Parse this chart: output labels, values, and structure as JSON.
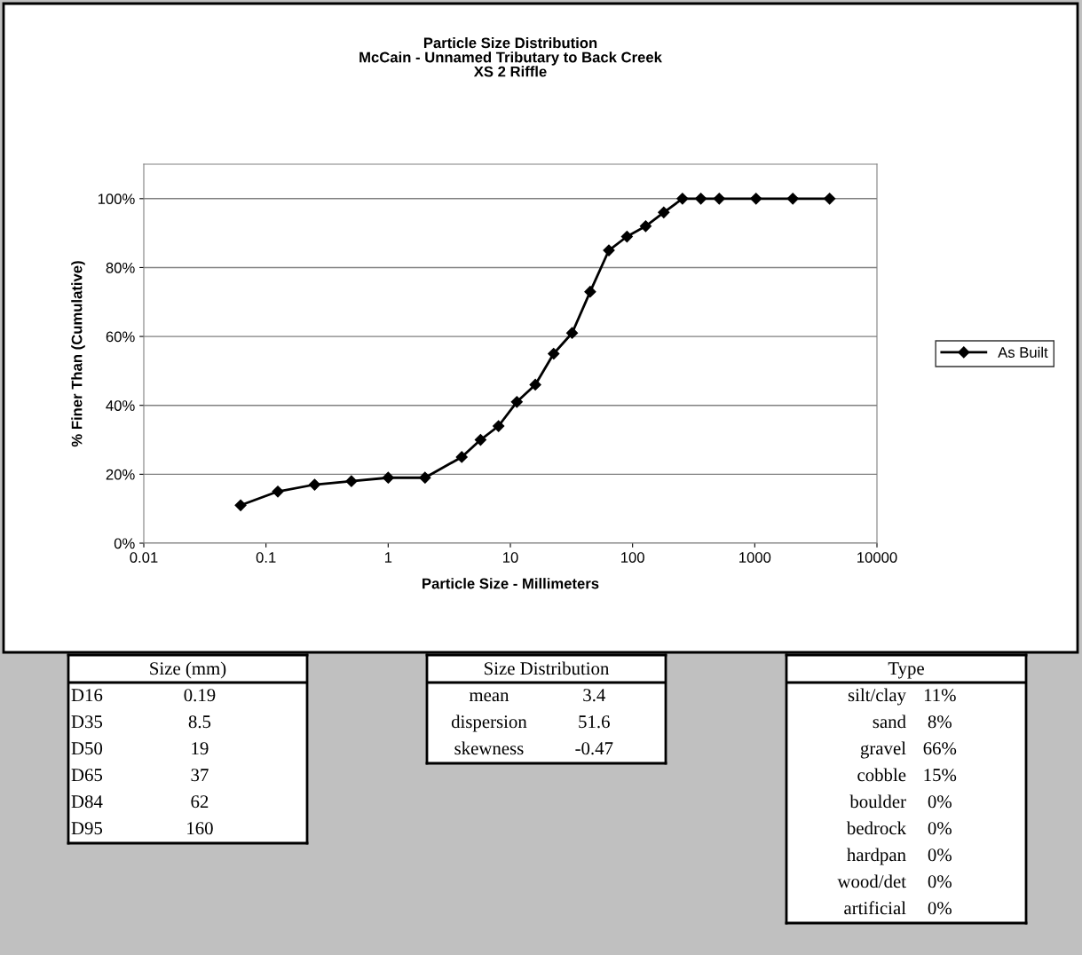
{
  "chart_data": [
    {
      "type": "line",
      "title": "Particle Size Distribution\nMcCain - Unnamed Tributary to Back Creek\nXS 2 Riffle",
      "xlabel": "Particle Size - Millimeters",
      "ylabel": "% Finer Than (Cumulative)",
      "log": "x",
      "xlim": [
        0.01,
        10000
      ],
      "xticks": [
        0.01,
        0.1,
        1,
        10,
        100,
        1000,
        10000
      ],
      "ylim": [
        0,
        110
      ],
      "yticks": [
        {
          "value": 0,
          "label": "0%"
        },
        {
          "value": 20,
          "label": "20%"
        },
        {
          "value": 40,
          "label": "40%"
        },
        {
          "value": 60,
          "label": "60%"
        },
        {
          "value": 80,
          "label": "80%"
        },
        {
          "value": 100,
          "label": "100%"
        }
      ],
      "grid": "y",
      "legend": "right",
      "marker": "diamond",
      "line_style": "solid",
      "x": [
        0.062,
        0.125,
        0.25,
        0.5,
        1,
        2,
        4,
        5.7,
        8,
        11.3,
        16,
        22.6,
        32,
        45,
        64,
        90,
        128,
        180,
        256,
        362,
        512,
        1024,
        2048,
        4096
      ],
      "series": [
        {
          "name": "As Built",
          "color": "#000000",
          "values": [
            11,
            15,
            17,
            18,
            19,
            19,
            25,
            30,
            34,
            41,
            46,
            55,
            61,
            73,
            85,
            89,
            92,
            96,
            100,
            100,
            100,
            100,
            100,
            100
          ]
        }
      ]
    },
    {
      "type": "other",
      "title": "Size (mm)",
      "annotations": [
        "D16 0.19",
        "D35 8.5",
        "D50 19",
        "D65 37",
        "D84 62",
        "D95 160"
      ]
    },
    {
      "type": "other",
      "title": "Size Distribution",
      "annotations": [
        "mean 3.4",
        "dispersion 51.6",
        "skewness -0.47"
      ]
    },
    {
      "type": "other",
      "title": "Type",
      "annotations": [
        "silt/clay 11%",
        "sand 8%",
        "gravel 66%",
        "cobble 15%",
        "boulder 0%",
        "bedrock 0%",
        "hardpan 0%",
        "wood/det 0%",
        "artificial 0%"
      ]
    }
  ]
}
